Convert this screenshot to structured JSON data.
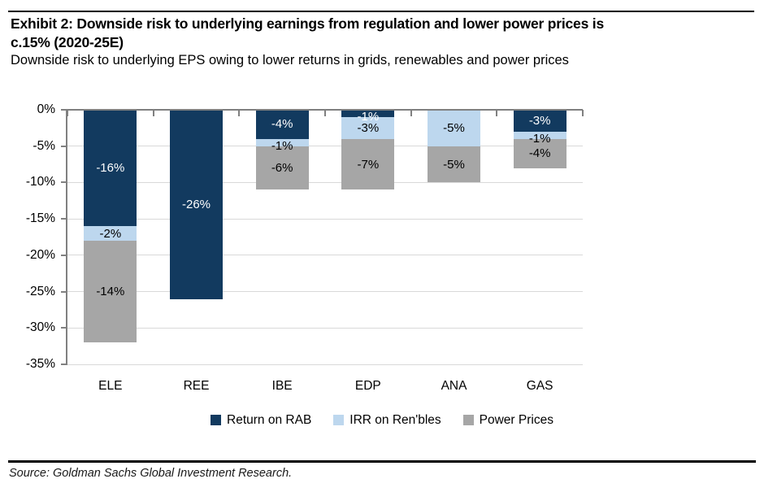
{
  "header": {
    "title_line1": "Exhibit 2: Downside risk to underlying earnings from regulation and lower power prices is",
    "title_line2": "c.15% (2020-25E)",
    "subtitle": "Downside risk to underlying EPS owing to lower returns in grids, renewables and power prices"
  },
  "chart_data": {
    "type": "bar",
    "stacked": true,
    "orientation": "vertical",
    "title": "Downside risk to underlying EPS owing to lower returns in grids, renewables and power prices",
    "categories": [
      "ELE",
      "REE",
      "IBE",
      "EDP",
      "ANA",
      "GAS"
    ],
    "series": [
      {
        "name": "Return on RAB",
        "color": "#123A5F",
        "label_color": "#ffffff",
        "values": [
          -16,
          -26,
          -4,
          -1,
          0,
          -3
        ]
      },
      {
        "name": "IRR on Ren'bles",
        "color": "#BDD7EE",
        "label_color": "#000000",
        "values": [
          -2,
          0,
          -1,
          -3,
          -5,
          -1
        ]
      },
      {
        "name": "Power Prices",
        "color": "#A6A6A6",
        "label_color": "#000000",
        "values": [
          -14,
          0,
          -6,
          -7,
          -5,
          -4
        ]
      }
    ],
    "data_label_format": "{v}%",
    "xlabel": "",
    "ylabel": "",
    "ylim": [
      -35,
      0
    ],
    "ytick_step": 5,
    "ytick_labels": [
      "0%",
      "-5%",
      "-10%",
      "-15%",
      "-20%",
      "-25%",
      "-30%",
      "-35%"
    ],
    "grid": true,
    "legend_position": "bottom",
    "axis_color": "#808080",
    "gridline_color": "#D9D9D9"
  },
  "footer": {
    "source": "Source: Goldman Sachs Global Investment Research."
  }
}
